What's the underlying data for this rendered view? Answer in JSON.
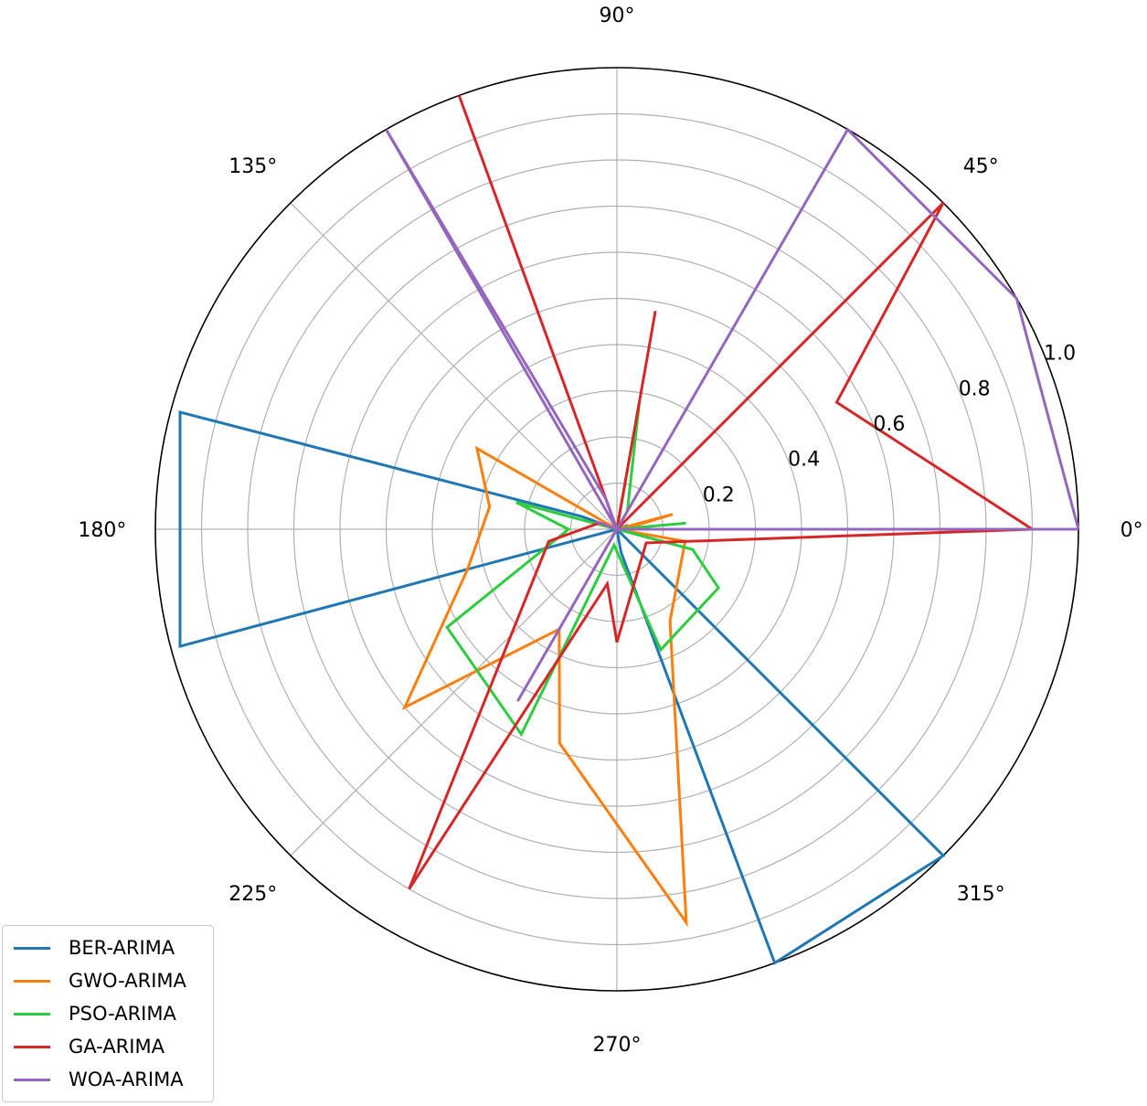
{
  "chart_data": {
    "type": "polar-line",
    "title": "",
    "theta_unit": "degrees",
    "theta_tick_labels": [
      "0°",
      "45°",
      "90°",
      "135°",
      "180°",
      "225°",
      "270°",
      "315°"
    ],
    "r_tick_labels": [
      "0.2",
      "0.4",
      "0.6",
      "0.8",
      "1.0"
    ],
    "r_ticks": [
      0.2,
      0.4,
      0.6,
      0.8,
      1.0
    ],
    "rlim": [
      0,
      1.0
    ],
    "grid": true,
    "legend_position": "lower-left",
    "series": [
      {
        "name": "BER-ARIMA",
        "color": "#1f77b4",
        "points": [
          [
            0,
            0
          ],
          [
            20,
            0.025
          ],
          [
            40,
            0
          ],
          [
            65,
            0
          ],
          [
            90,
            0
          ],
          [
            110,
            0
          ],
          [
            160,
            0.08
          ],
          [
            165,
            0.98
          ],
          [
            195,
            0.98
          ],
          [
            225,
            0
          ],
          [
            250,
            0
          ],
          [
            280,
            0.05
          ],
          [
            290,
            1.0
          ],
          [
            315,
            1.0
          ],
          [
            330,
            0
          ],
          [
            350,
            0
          ]
        ]
      },
      {
        "name": "GWO-ARIMA",
        "color": "#ff7f0e",
        "points": [
          [
            0,
            0
          ],
          [
            10,
            0.035
          ],
          [
            15,
            0.125
          ],
          [
            40,
            0
          ],
          [
            60,
            0
          ],
          [
            80,
            0.08
          ],
          [
            100,
            0
          ],
          [
            120,
            0
          ],
          [
            150,
            0.35
          ],
          [
            170,
            0.28
          ],
          [
            195,
            0.335
          ],
          [
            220,
            0.6
          ],
          [
            240,
            0.25
          ],
          [
            255,
            0.48
          ],
          [
            280,
            0.865
          ],
          [
            300,
            0.23
          ],
          [
            350,
            0.15
          ]
        ]
      },
      {
        "name": "PSO-ARIMA",
        "color": "#2ecc40",
        "points": [
          [
            0,
            0
          ],
          [
            5,
            0.15
          ],
          [
            15,
            0
          ],
          [
            60,
            0.045
          ],
          [
            80,
            0.28
          ],
          [
            90,
            0
          ],
          [
            120,
            0
          ],
          [
            165,
            0.226
          ],
          [
            180,
            0.105
          ],
          [
            210,
            0.425
          ],
          [
            245,
            0.49
          ],
          [
            260,
            0.035
          ],
          [
            290,
            0.278
          ],
          [
            330,
            0.254
          ],
          [
            345,
            0.17
          ]
        ]
      },
      {
        "name": "GA-ARIMA",
        "color": "#d62728",
        "points": [
          [
            0,
            0.9
          ],
          [
            30,
            0.55
          ],
          [
            45,
            1.0
          ],
          [
            60,
            0
          ],
          [
            80,
            0.48
          ],
          [
            90,
            0
          ],
          [
            110,
            1.0
          ],
          [
            130,
            0
          ],
          [
            160,
            0.04
          ],
          [
            190,
            0.15
          ],
          [
            240,
            0.9
          ],
          [
            260,
            0.12
          ],
          [
            270,
            0.245
          ],
          [
            335,
            0.07
          ]
        ]
      },
      {
        "name": "WOA-ARIMA",
        "color": "#9467bd",
        "points": [
          [
            0,
            1.0
          ],
          [
            30,
            1.0
          ],
          [
            60,
            1.0
          ],
          [
            90,
            0
          ],
          [
            110,
            0.07
          ],
          [
            120,
            1.0
          ],
          [
            150,
            0
          ],
          [
            160,
            0.05
          ],
          [
            200,
            0
          ],
          [
            240,
            0.43
          ],
          [
            300,
            0
          ],
          [
            330,
            0
          ]
        ]
      }
    ]
  },
  "legend": {
    "entries": [
      "BER-ARIMA",
      "GWO-ARIMA",
      "PSO-ARIMA",
      "GA-ARIMA",
      "WOA-ARIMA"
    ]
  }
}
